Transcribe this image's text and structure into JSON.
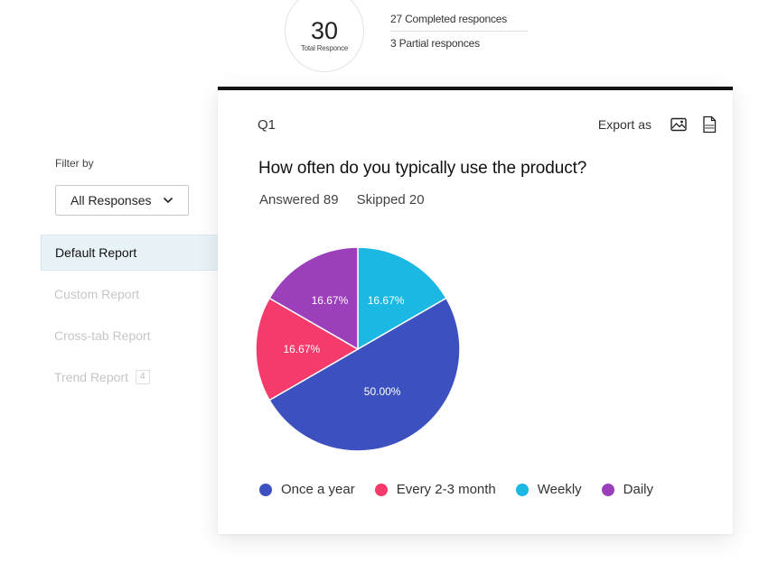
{
  "summary": {
    "total_number": "30",
    "total_label": "Total Responce",
    "completed": "27 Completed responces",
    "partial": "3 Partial responces"
  },
  "sidebar": {
    "filter_label": "Filter by",
    "filter_value": "All Responses",
    "items": [
      {
        "label": "Default Report",
        "active": true
      },
      {
        "label": "Custom Report",
        "active": false
      },
      {
        "label": "Cross-tab Report",
        "active": false
      },
      {
        "label": "Trend Report",
        "active": false,
        "badge": "4"
      }
    ]
  },
  "card": {
    "question_number": "Q1",
    "export_label": "Export as",
    "export_icons": [
      "image-icon",
      "pdf-icon"
    ],
    "question": "How often do you typically use the product?",
    "answered": "Answered 89",
    "skipped": "Skipped 20"
  },
  "chart_data": {
    "type": "pie",
    "title": "",
    "slices": [
      {
        "name": "Once a year",
        "value": 50.0,
        "label": "50.00%",
        "color": "#3c51bf"
      },
      {
        "name": "Every 2-3 month",
        "value": 16.67,
        "label": "16.67%",
        "color": "#f43b6b"
      },
      {
        "name": "Weekly",
        "value": 16.67,
        "label": "16.67%",
        "color": "#1ab8e2"
      },
      {
        "name": "Daily",
        "value": 16.67,
        "label": "16.67%",
        "color": "#9c3fbb"
      }
    ],
    "legend_position": "bottom"
  }
}
